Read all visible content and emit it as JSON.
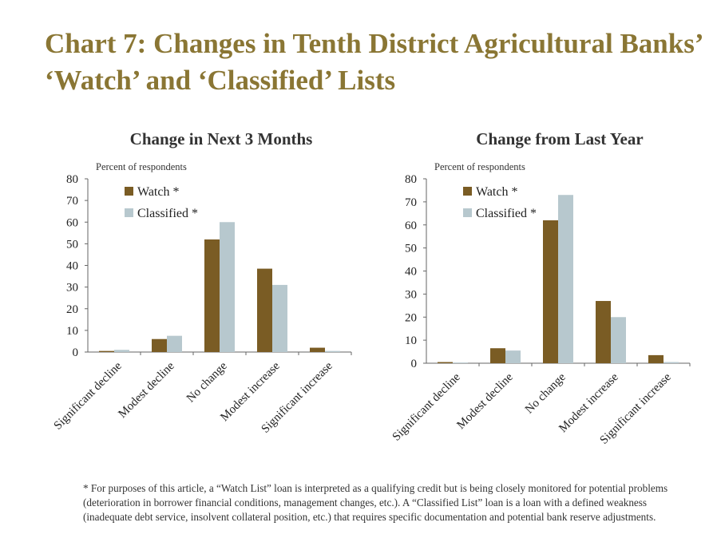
{
  "title": "Chart 7: Changes in Tenth District Agricultural Banks’ ‘Watch’ and ‘Classified’ Lists",
  "footnote": "* For purposes of this article, a “Watch List” loan is interpreted as a qualifying credit but is being closely monitored for potential problems (deterioration in borrower financial conditions, management changes, etc.). A “Classified List” loan is a loan with a defined weakness (inadequate debt service, insolvent collateral position, etc.) that requires specific documentation and potential bank reserve adjustments.",
  "colors": {
    "watch": "#7a5c24",
    "classified": "#b7c8ce",
    "title": "#8a7634"
  },
  "chart_data": [
    {
      "type": "bar",
      "title": "Change in Next 3 Months",
      "ylabel": "Percent of respondents",
      "xlabel": "",
      "ylim": [
        0,
        80
      ],
      "yticks": [
        0,
        10,
        20,
        30,
        40,
        50,
        60,
        70,
        80
      ],
      "grid": false,
      "legend_position": "top-left",
      "categories": [
        "Significant decline",
        "Modest decline",
        "No change",
        "Modest increase",
        "Significant increase"
      ],
      "series": [
        {
          "name": "Watch *",
          "values": [
            0.5,
            6,
            52,
            38.5,
            2
          ]
        },
        {
          "name": "Classified *",
          "values": [
            1,
            7.5,
            60,
            31,
            0.5
          ]
        }
      ]
    },
    {
      "type": "bar",
      "title": "Change from Last Year",
      "ylabel": "Percent of respondents",
      "xlabel": "",
      "ylim": [
        0,
        80
      ],
      "yticks": [
        0,
        10,
        20,
        30,
        40,
        50,
        60,
        70,
        80
      ],
      "grid": false,
      "legend_position": "top-left",
      "categories": [
        "Significant decline",
        "Modest decline",
        "No change",
        "Modest increase",
        "Significant increase"
      ],
      "series": [
        {
          "name": "Watch *",
          "values": [
            0.5,
            6.5,
            62,
            27,
            3.5
          ]
        },
        {
          "name": "Classified *",
          "values": [
            0.3,
            5.5,
            73,
            20,
            0.5
          ]
        }
      ]
    }
  ]
}
